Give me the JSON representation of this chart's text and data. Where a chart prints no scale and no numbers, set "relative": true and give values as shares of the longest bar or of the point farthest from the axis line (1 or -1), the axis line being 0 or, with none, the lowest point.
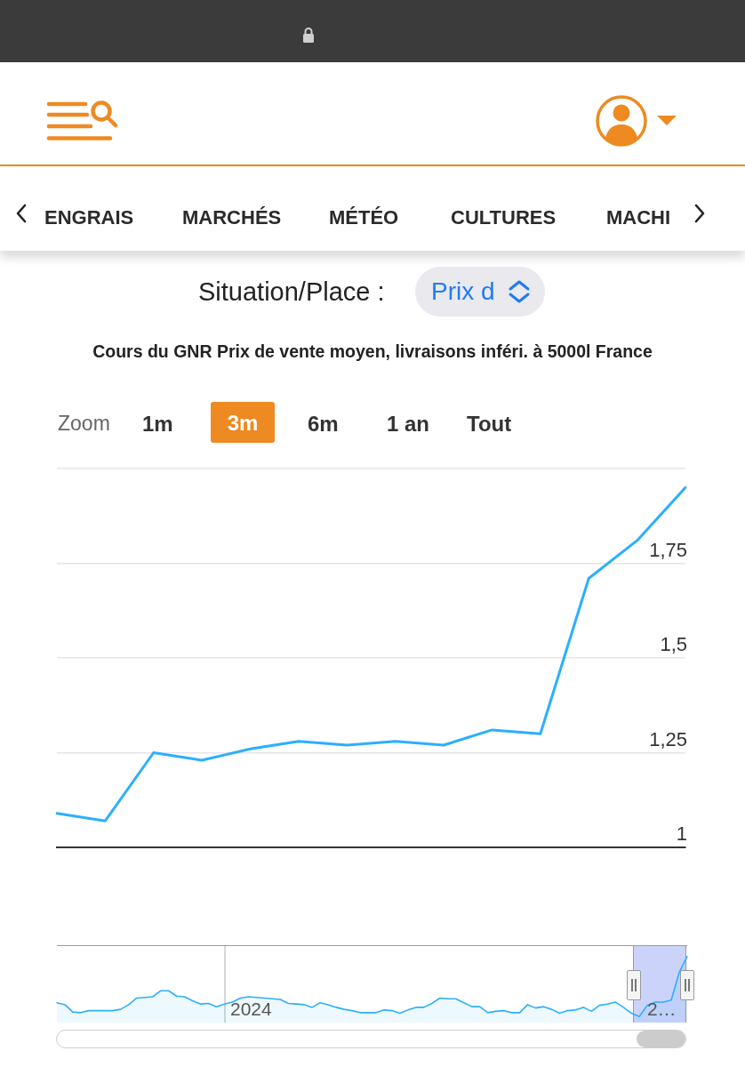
{
  "chart_data": [
    {
      "type": "line",
      "title": "Cours du GNR Prix de vente moyen, livraisons inféri. à 5000l France",
      "categories": [
        null,
        null,
        null,
        null,
        null,
        null,
        null,
        null,
        null,
        null,
        null,
        null,
        null,
        null
      ],
      "series": [
        {
          "color": "#2caffe",
          "values": [
            1.09,
            1.07,
            1.25,
            1.23,
            1.26,
            1.28,
            1.27,
            1.28,
            1.27,
            1.31,
            1.3,
            1.71,
            1.81,
            1.95
          ]
        }
      ],
      "ylim": [
        1,
        2
      ],
      "yticks": [
        1,
        {
          "value": 1.25,
          "label": "1,25"
        },
        {
          "value": 1.5,
          "label": "1,5"
        },
        {
          "value": 1.75,
          "label": "1,75"
        },
        {
          "value": 2,
          "label": null
        }
      ],
      "grid": "y",
      "marker": "none",
      "tick_labels": "y",
      "annotations": [
        "ENGRAIS",
        "MARCHÉS",
        "MÉTÉO",
        "CULTURES",
        "MACHI",
        "Situation/Place :",
        "Prix d",
        "Zoom",
        "1m",
        "3m",
        "6m",
        "1 an",
        "Tout"
      ]
    },
    {
      "type": "area",
      "relative": true,
      "categories": [
        null,
        null,
        null,
        null,
        null,
        null,
        null,
        null,
        null,
        null,
        null,
        null,
        null,
        null,
        null,
        null,
        null,
        null,
        null,
        null,
        null,
        null,
        null,
        null,
        null,
        null,
        null,
        null,
        null,
        null,
        null,
        null,
        null,
        null,
        null,
        null,
        null,
        null,
        null,
        null,
        null,
        null,
        null,
        null,
        null,
        null,
        null,
        null,
        null,
        null,
        null,
        null,
        null,
        null,
        null,
        null,
        null,
        null,
        null,
        null,
        null,
        null,
        null,
        null,
        null,
        null,
        null,
        null,
        null,
        null,
        null,
        null,
        null,
        null,
        null,
        null,
        null,
        null,
        null,
        null
      ],
      "series": [
        {
          "color": "#2caffe",
          "values": [
            0.3,
            0.27,
            0.16,
            0.15,
            0.18,
            0.18,
            0.18,
            0.18,
            0.2,
            0.27,
            0.37,
            0.38,
            0.39,
            0.48,
            0.48,
            0.4,
            0.39,
            0.33,
            0.28,
            0.29,
            0.24,
            0.28,
            0.31,
            0.37,
            0.39,
            0.38,
            0.37,
            0.36,
            0.35,
            0.29,
            0.28,
            0.27,
            0.23,
            0.3,
            0.27,
            0.23,
            0.2,
            0.18,
            0.15,
            0.15,
            0.15,
            0.19,
            0.18,
            0.14,
            0.19,
            0.23,
            0.23,
            0.29,
            0.37,
            0.36,
            0.36,
            0.3,
            0.24,
            0.24,
            0.15,
            0.17,
            0.18,
            0.15,
            0.15,
            0.27,
            0.22,
            0.24,
            0.2,
            0.14,
            0.18,
            0.19,
            0.23,
            0.17,
            0.26,
            0.28,
            0.31,
            0.23,
            0.14,
            0.09,
            0.26,
            0.31,
            0.31,
            0.34,
            0.76,
            1
          ]
        }
      ],
      "marker": "none",
      "tick_labels": false,
      "annotations": [
        "2024",
        "2…"
      ]
    }
  ]
}
